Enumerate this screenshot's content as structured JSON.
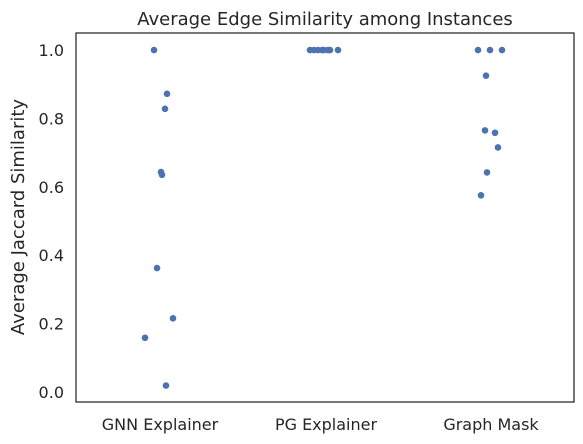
{
  "chart_data": {
    "type": "scatter",
    "title": "Average Edge Similarity among Instances",
    "xlabel": "",
    "ylabel": "Average Jaccard Similarity",
    "categories": [
      "GNN Explainer",
      "PG Explainer",
      "Graph Mask"
    ],
    "ylim": [
      -0.03,
      1.05
    ],
    "yticks": [
      "0.0",
      "0.2",
      "0.4",
      "0.6",
      "0.8",
      "1.0"
    ],
    "grid": false,
    "point_color": "#4c72b0",
    "series": [
      {
        "category": "GNN Explainer",
        "values": [
          1.0,
          0.872,
          0.828,
          0.643,
          0.635,
          0.362,
          0.215,
          0.158,
          0.018
        ]
      },
      {
        "category": "PG Explainer",
        "values": [
          1.0,
          1.0,
          1.0,
          1.0,
          1.0,
          1.0,
          1.0,
          1.0
        ]
      },
      {
        "category": "Graph Mask",
        "values": [
          1.0,
          1.0,
          1.0,
          0.925,
          0.765,
          0.758,
          0.715,
          0.642,
          0.575
        ]
      }
    ]
  }
}
